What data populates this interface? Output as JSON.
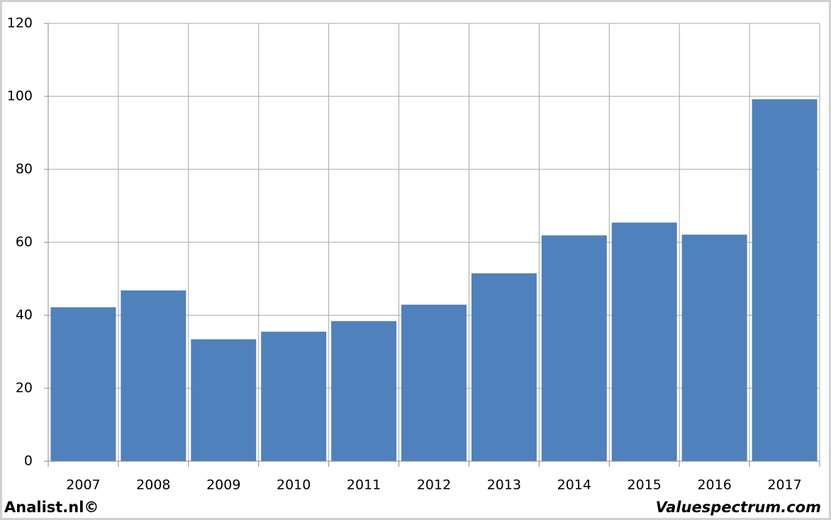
{
  "chart_data": {
    "type": "bar",
    "categories": [
      "2007",
      "2008",
      "2009",
      "2010",
      "2011",
      "2012",
      "2013",
      "2014",
      "2015",
      "2016",
      "2017"
    ],
    "values": [
      42.2,
      46.8,
      33.4,
      35.5,
      38.4,
      42.9,
      51.5,
      61.9,
      65.4,
      62.1,
      99.2
    ],
    "color": "#4f81bd",
    "ylim": [
      0,
      120
    ],
    "yticks": [
      0,
      20,
      40,
      60,
      80,
      100,
      120
    ],
    "grid": true
  },
  "footer": {
    "left": "Analist.nl©",
    "right": "Valuespectrum.com"
  }
}
